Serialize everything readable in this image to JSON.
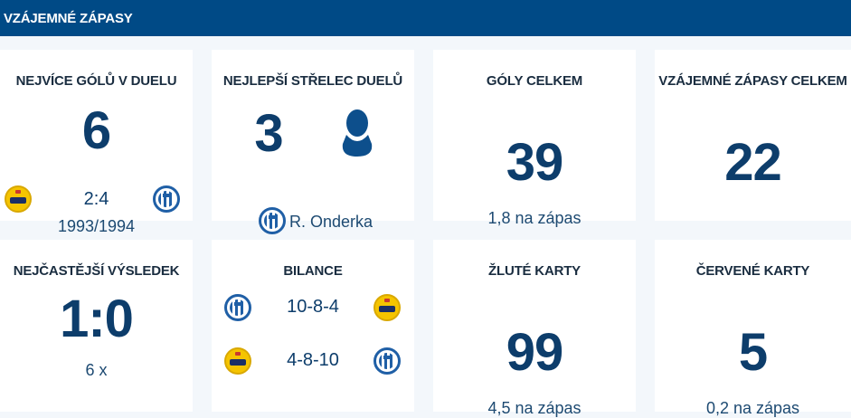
{
  "header": {
    "title": "VZÁJEMNÉ ZÁPASY"
  },
  "cards": {
    "most_goals": {
      "title": "NEJVÍCE GÓLŮ V DUELU",
      "value": "6",
      "score": "2:4",
      "season": "1993/1994",
      "home_logo": "yellow-club-logo",
      "away_logo": "blue-striped-club-logo"
    },
    "top_scorer": {
      "title": "NEJLEPŠÍ STŘELEC DUELŮ",
      "value": "3",
      "name": "R. Onderka",
      "avatar": "player-silhouette-icon",
      "logo": "blue-striped-club-logo"
    },
    "goals_total": {
      "title": "GÓLY CELKEM",
      "value": "39",
      "per_match": "1,8 na zápas"
    },
    "matches_total": {
      "title": "VZÁJEMNÉ ZÁPASY CELKEM",
      "value": "22"
    },
    "common_result": {
      "title": "NEJČASTĚJŠÍ VÝSLEDEK",
      "value": "1:0",
      "count": "6 x"
    },
    "balance": {
      "title": "BILANCE",
      "rows": [
        {
          "record": "10-8-4",
          "left_logo": "blue-striped-club-logo",
          "right_logo": "yellow-club-logo"
        },
        {
          "record": "4-8-10",
          "left_logo": "yellow-club-logo",
          "right_logo": "blue-striped-club-logo"
        }
      ]
    },
    "yellow_cards": {
      "title": "ŽLUTÉ KARTY",
      "value": "99",
      "per_match": "4,5 na zápas"
    },
    "red_cards": {
      "title": "ČERVENÉ KARTY",
      "value": "5",
      "per_match": "0,2 na zápas"
    }
  },
  "colors": {
    "header_bg": "#004a86",
    "value_text": "#0d3d6b",
    "page_bg": "#f3f7fb",
    "club_yellow": "#f5c400",
    "club_blue": "#1f5fa6"
  }
}
